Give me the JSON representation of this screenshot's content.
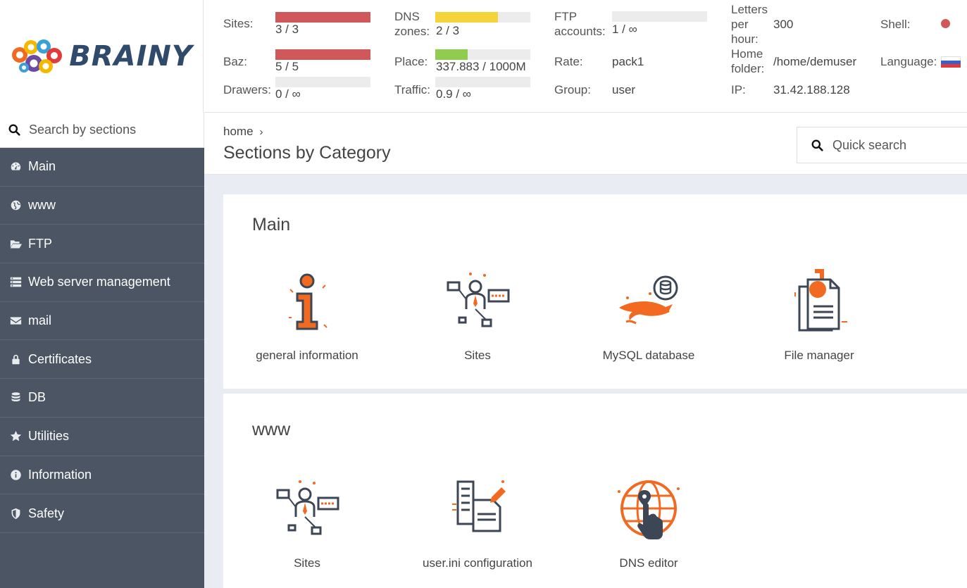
{
  "brand": {
    "name": "BRAINY"
  },
  "stats": {
    "sites": {
      "label": "Sites:",
      "value": "3 / 3",
      "fill_pct": 100,
      "color": "#d0585a"
    },
    "baz": {
      "label": "Baz:",
      "value": "5 / 5",
      "fill_pct": 100,
      "color": "#d0585a"
    },
    "drawers": {
      "label": "Drawers:",
      "value": "0 / ∞",
      "fill_pct": 0,
      "color": "#d0585a"
    },
    "dns": {
      "label": "DNS zones:",
      "value": "2 / 3",
      "fill_pct": 66,
      "color": "#f5d33a"
    },
    "place": {
      "label": "Place:",
      "value": "337.883 / 1000M",
      "fill_pct": 34,
      "color": "#8fcc4f"
    },
    "traffic": {
      "label": "Traffic:",
      "value": "0.9 / ∞",
      "fill_pct": 0,
      "color": "#8fcc4f"
    },
    "ftp": {
      "label": "FTP accounts:",
      "value": "1 / ∞",
      "fill_pct": 0,
      "color": "#d0585a"
    },
    "rate": {
      "label": "Rate:",
      "value": "pack1"
    },
    "group": {
      "label": "Group:",
      "value": "user"
    },
    "letters": {
      "label": "Letters per hour:",
      "value": "300"
    },
    "home": {
      "label": "Home folder:",
      "value": "/home/demuser"
    },
    "ip": {
      "label": "IP:",
      "value": "31.42.188.128"
    },
    "shell": {
      "label": "Shell:",
      "status_color": "#d0585a"
    },
    "language": {
      "label": "Language:",
      "flag": "russian-flag"
    }
  },
  "sidebar": {
    "search_placeholder": "Search by sections",
    "items": [
      {
        "label": "Main",
        "icon": "dashboard-icon"
      },
      {
        "label": "www",
        "icon": "globe-icon"
      },
      {
        "label": "FTP",
        "icon": "folder-open-icon"
      },
      {
        "label": "Web server management",
        "icon": "server-icon"
      },
      {
        "label": "mail",
        "icon": "envelope-icon"
      },
      {
        "label": "Certificates",
        "icon": "lock-icon"
      },
      {
        "label": "DB",
        "icon": "database-icon"
      },
      {
        "label": "Utilities",
        "icon": "star-icon"
      },
      {
        "label": "Information",
        "icon": "info-icon"
      },
      {
        "label": "Safety",
        "icon": "shield-icon"
      }
    ]
  },
  "breadcrumb": {
    "home": "home",
    "sep": "›"
  },
  "page_title": "Sections by Category",
  "quick_search_placeholder": "Quick search",
  "sections": [
    {
      "title": "Main",
      "tiles": [
        {
          "label": "general information",
          "icon": "info-icon"
        },
        {
          "label": "Sites",
          "icon": "sites-icon"
        },
        {
          "label": "MySQL database",
          "icon": "mysql-icon"
        },
        {
          "label": "File manager",
          "icon": "file-manager-icon"
        }
      ]
    },
    {
      "title": "www",
      "tiles": [
        {
          "label": "Sites",
          "icon": "sites-icon"
        },
        {
          "label": "user.ini configuration",
          "icon": "config-file-icon"
        },
        {
          "label": "DNS editor",
          "icon": "dns-globe-icon"
        }
      ]
    }
  ],
  "colors": {
    "sidebar_bg": "#4b5563",
    "accent_orange": "#f26a21",
    "icon_dark": "#3d4654",
    "content_bg": "#e9edf3"
  }
}
